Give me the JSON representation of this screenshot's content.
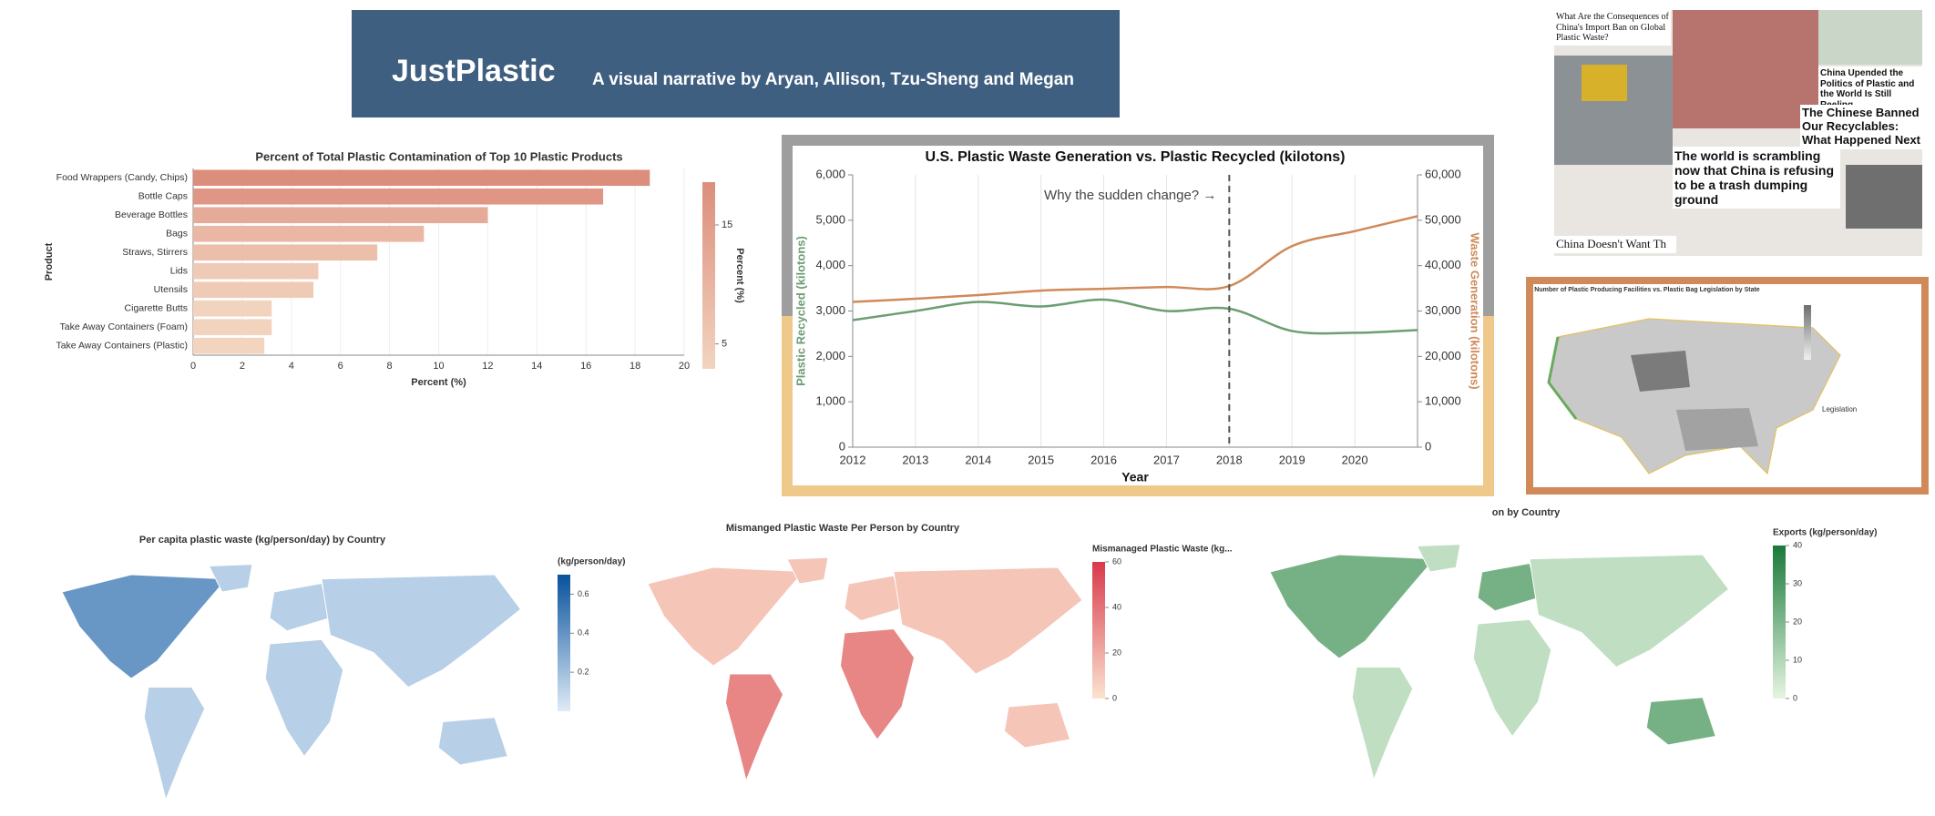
{
  "header": {
    "title": "JustPlastic",
    "subtitle": "A visual narrative by Aryan, Allison, Tzu-Sheng and Megan"
  },
  "collage": {
    "headlines": [
      "What Are the Consequences of China's Import Ban on Global Plastic Waste?",
      "China Upended the Politics of Plastic and the World Is Still Reeling",
      "The Chinese Banned Our Recyclables: What Happened Next",
      "The world is scrambling now that China is refusing to be a trash dumping ground",
      "China Doesn't Want Th"
    ]
  },
  "chart_data": [
    {
      "type": "barh",
      "title": "Percent of Total Plastic Contamination of Top 10 Plastic Products",
      "categories": [
        "Food Wrappers (Candy, Chips)",
        "Bottle Caps",
        "Beverage Bottles",
        "Bags",
        "Straws, Stirrers",
        "Lids",
        "Utensils",
        "Cigarette Butts",
        "Take Away Containers (Foam)",
        "Take Away Containers (Plastic)"
      ],
      "values": [
        18.6,
        16.7,
        12,
        9.4,
        7.5,
        5.1,
        4.9,
        3.2,
        3.2,
        2.9
      ],
      "xlim": [
        0,
        20
      ],
      "xticks": [
        0,
        2,
        4,
        6,
        8,
        10,
        12,
        14,
        16,
        18,
        20
      ],
      "xlabel": "Percent (%)",
      "ylabel": "Product",
      "grid": true,
      "colors": [
        "#f2d4bf",
        "#dc8e7c"
      ],
      "legend_title": "Percent (%)",
      "legend_ticks": [
        5,
        15
      ]
    },
    {
      "type": "line",
      "title": "U.S. Plastic Waste Generation vs. Plastic Recycled (kilotons)",
      "x": [
        2012,
        2013,
        2014,
        2015,
        2016,
        2017,
        2018,
        2019,
        2020,
        2021
      ],
      "series": [
        {
          "name": "Plastic Recycled (kilotons)",
          "color": "#6b9e70",
          "values": [
            2800,
            3000,
            3200,
            3100,
            3250,
            3000,
            3050,
            2560,
            2520,
            2580
          ]
        },
        {
          "name": "Waste Generation (kilotons)",
          "color": "#d08a5a",
          "axis": "y2",
          "values": [
            32000,
            32700,
            33500,
            34500,
            34900,
            35300,
            35500,
            44300,
            47600,
            50900
          ]
        }
      ],
      "xlim": [
        2012,
        2021
      ],
      "xticks": [
        2012,
        2013,
        2014,
        2015,
        2016,
        2017,
        2018,
        2019,
        2020
      ],
      "ylim": [
        0,
        6000
      ],
      "yticks": [
        0,
        {
          "value": 1000,
          "label": "1,000"
        },
        {
          "value": 2000,
          "label": "2,000"
        },
        {
          "value": 3000,
          "label": "3,000"
        },
        {
          "value": 4000,
          "label": "4,000"
        },
        {
          "value": 5000,
          "label": "5,000"
        },
        {
          "value": 6000,
          "label": "6,000"
        }
      ],
      "y2lim": [
        0,
        60000
      ],
      "y2ticks": [
        0,
        {
          "value": 10000,
          "label": "10,000"
        },
        {
          "value": 20000,
          "label": "20,000"
        },
        {
          "value": 30000,
          "label": "30,000"
        },
        {
          "value": 40000,
          "label": "40,000"
        },
        {
          "value": 50000,
          "label": "50,000"
        },
        {
          "value": 60000,
          "label": "60,000"
        }
      ],
      "xlabel": "Year",
      "grid": "x",
      "annotation": {
        "text": "Why the sudden change? →",
        "x": 2018
      }
    },
    {
      "type": "choropleth",
      "title": "Number of Plastic Producing Facilities vs. Plastic Bag Legislation by State",
      "legend_title": "Legislation",
      "colors": [
        "#f0f0f0",
        "#6e6e6e"
      ]
    },
    {
      "type": "choropleth",
      "title": "Per capita plastic waste (kg/person/day) by Country",
      "legend_title": "(kg/person/day)",
      "legend_ticks": [
        0.2,
        0.4,
        0.6
      ],
      "legend_lim": [
        0,
        0.7
      ],
      "colors": [
        "#deebf7",
        "#08519c"
      ]
    },
    {
      "type": "choropleth",
      "title": "Mismanged Plastic Waste Per Person by Country",
      "legend_title": "Mismanaged Plastic Waste (kg...",
      "legend_ticks": [
        0,
        20,
        40,
        60
      ],
      "legend_lim": [
        0,
        60
      ],
      "colors": [
        "#fbe3d0",
        "#d93a4a"
      ]
    },
    {
      "type": "choropleth",
      "title": "on by Country",
      "legend_title": "Exports (kg/person/day)",
      "legend_ticks": [
        0,
        10,
        20,
        30,
        40
      ],
      "legend_lim": [
        0,
        40
      ],
      "colors": [
        "#e5f5e0",
        "#19793a"
      ]
    }
  ]
}
